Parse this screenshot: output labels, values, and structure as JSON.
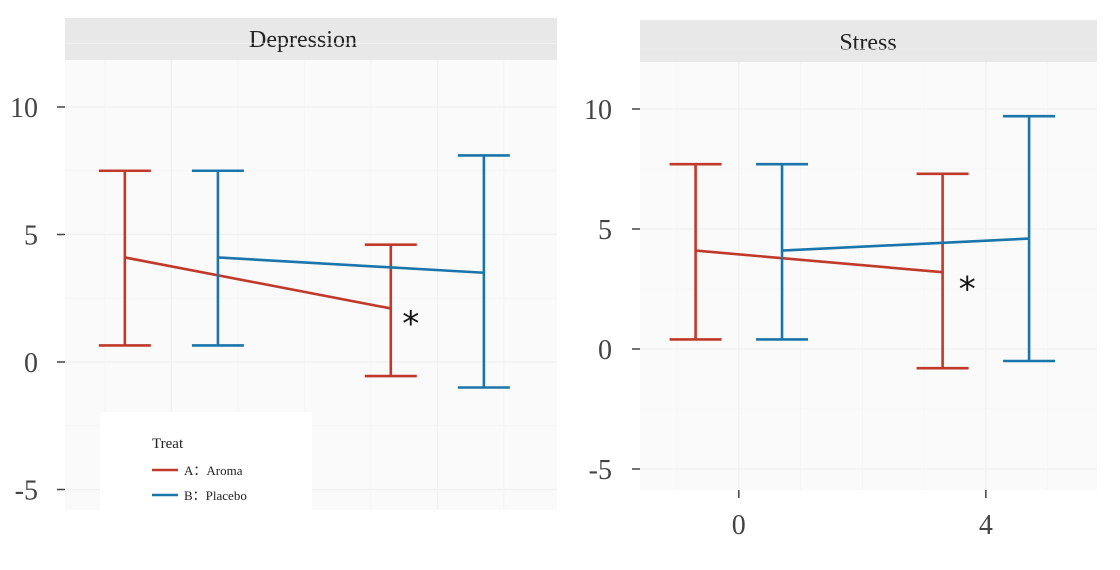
{
  "chart_data": [
    {
      "type": "errorbar-line",
      "facet": "Depression",
      "ylim": [
        -5.8,
        12
      ],
      "yticks": [
        "-5",
        "0",
        "5",
        "10"
      ],
      "ytick_values": [
        -5,
        0,
        5,
        10
      ],
      "xlim": [
        -1.6,
        5.8
      ],
      "grid": true,
      "series": [
        {
          "name": "A：Aroma",
          "color": "#c0392b",
          "points": [
            {
              "x": -0.7,
              "mean": 4.1,
              "lo": 0.65,
              "hi": 7.5
            },
            {
              "x": 3.3,
              "mean": 2.1,
              "lo": -0.55,
              "hi": 4.6
            }
          ]
        },
        {
          "name": "B：Placebo",
          "color": "#1a75aa",
          "points": [
            {
              "x": 0.7,
              "mean": 4.1,
              "lo": 0.65,
              "hi": 7.5
            },
            {
              "x": 4.7,
              "mean": 3.5,
              "lo": -1.0,
              "hi": 8.1
            }
          ]
        }
      ],
      "annotations": [
        {
          "text": "*",
          "x": 3.6,
          "y": 1.6
        }
      ]
    },
    {
      "type": "errorbar-line",
      "facet": "Stress",
      "ylim": [
        -5.5,
        12
      ],
      "yticks": [
        "-5",
        "0",
        "5",
        "10"
      ],
      "ytick_values": [
        -5,
        0,
        5,
        10
      ],
      "xlim": [
        -1.6,
        5.8
      ],
      "xticks": [
        "0",
        "4"
      ],
      "xtick_values": [
        0,
        4
      ],
      "grid": true,
      "series": [
        {
          "name": "A：Aroma",
          "color": "#c0392b",
          "points": [
            {
              "x": -0.7,
              "mean": 4.1,
              "lo": 0.4,
              "hi": 7.7
            },
            {
              "x": 3.3,
              "mean": 3.2,
              "lo": -0.8,
              "hi": 7.3
            }
          ]
        },
        {
          "name": "B：Placebo",
          "color": "#1a75aa",
          "points": [
            {
              "x": 0.7,
              "mean": 4.1,
              "lo": 0.4,
              "hi": 7.7
            },
            {
              "x": 4.7,
              "mean": 4.6,
              "lo": -0.5,
              "hi": 9.7
            }
          ]
        }
      ],
      "annotations": [
        {
          "text": "*",
          "x": 3.7,
          "y": 2.6
        }
      ]
    }
  ],
  "legend": {
    "title": "Treat",
    "placement": "bottom-left",
    "entries": [
      {
        "label": "A：Aroma",
        "color": "#c0392b"
      },
      {
        "label": "B：Placebo",
        "color": "#1a75aa"
      }
    ]
  }
}
